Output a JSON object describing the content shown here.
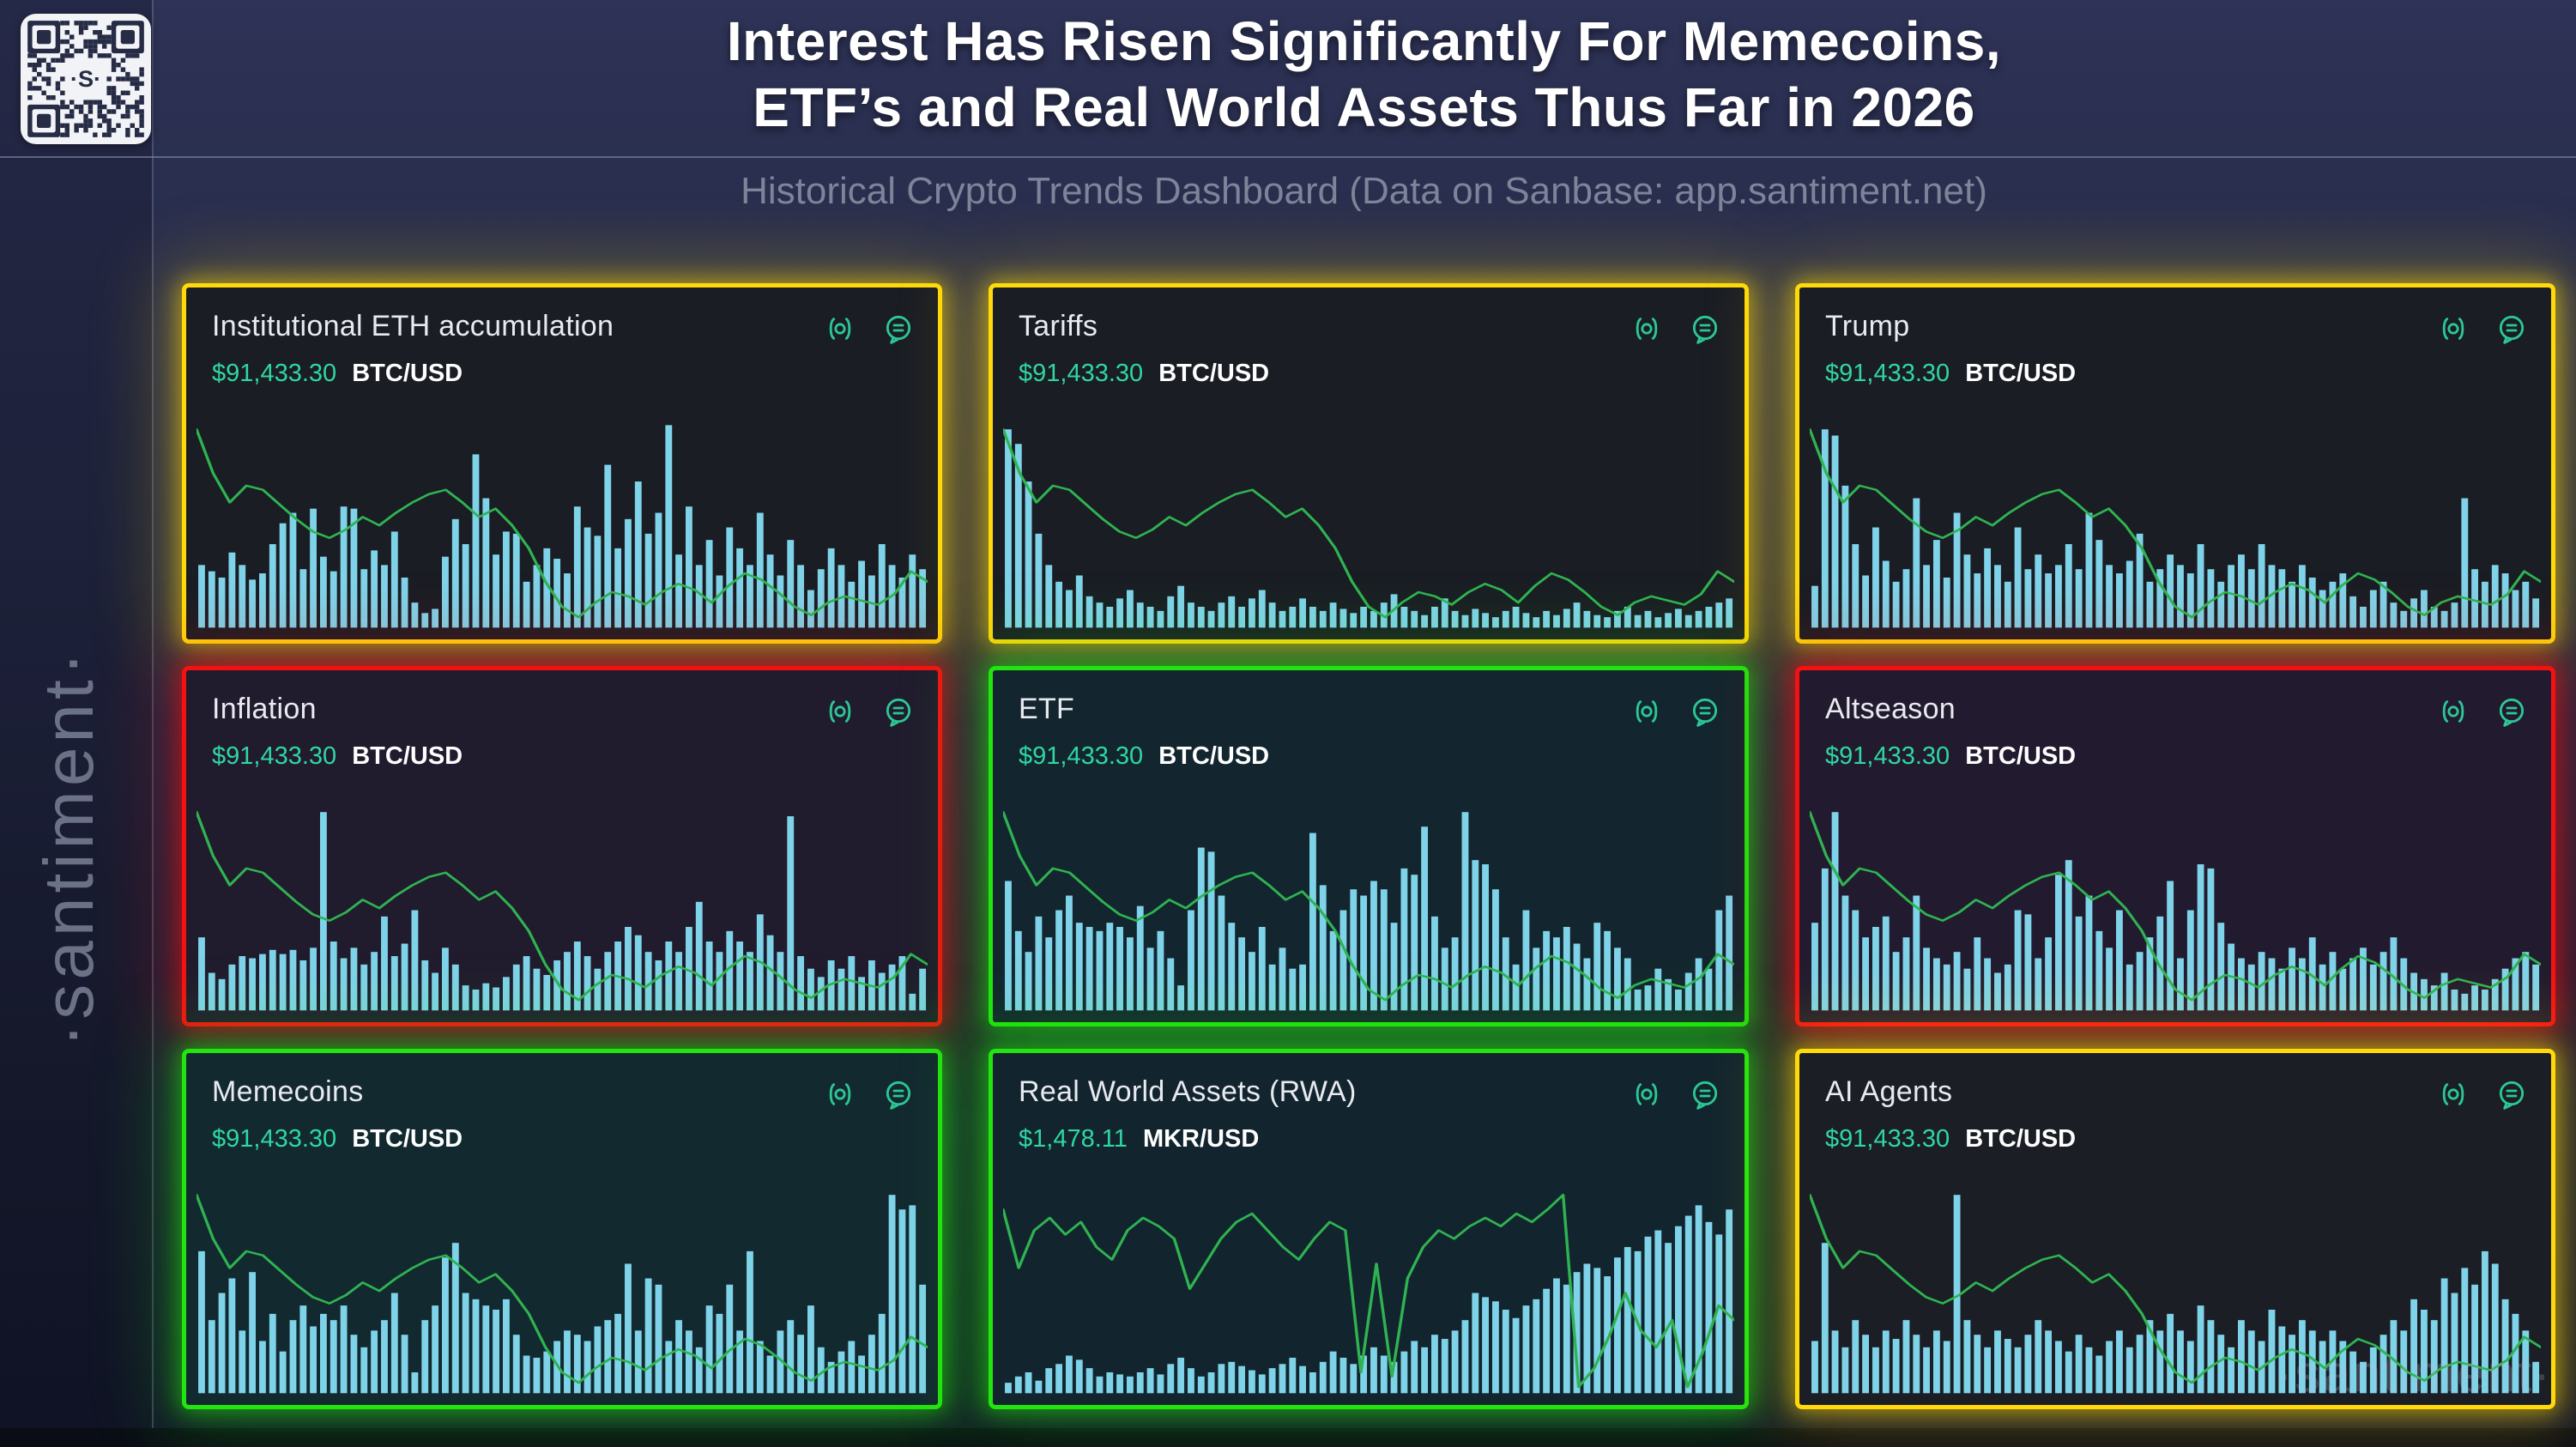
{
  "page": {
    "title_line1": "Interest Has Risen Significantly For Memecoins,",
    "title_line2": "ETF’s and Real World Assets Thus Far in 2026",
    "subtitle": "Historical Crypto Trends Dashboard (Data on Sanbase: app.santiment.net)",
    "brand_vertical": "·santiment·",
    "watermark": "·santiment·"
  },
  "qr": {
    "center_text": "·S·"
  },
  "icons": [
    {
      "name": "signal-icon"
    },
    {
      "name": "comments-icon"
    }
  ],
  "colors": {
    "bar": "#7fd3e9",
    "line": "#2fb351",
    "price_green": "#2fd7a2",
    "icon_green": "#2cc795",
    "borders": {
      "yellow": "#ffd90a",
      "red": "#f51111",
      "green": "#22e40e"
    }
  },
  "chart_meta": {
    "note": "No axes, ticks or numeric scales are shown in the image; bar and line values below are visual estimates normalized 0-100 of panel height.",
    "x_axis": "time (unlabeled)",
    "y_axis": "unlabeled",
    "grid": "off",
    "legend": "none"
  },
  "price_lines": {
    "btc_usd": [
      95,
      74,
      60,
      68,
      66,
      59,
      52,
      46,
      43,
      47,
      53,
      49,
      55,
      60,
      64,
      66,
      60,
      53,
      57,
      49,
      38,
      22,
      10,
      5,
      12,
      17,
      15,
      11,
      17,
      21,
      18,
      12,
      20,
      26,
      23,
      17,
      10,
      6,
      12,
      15,
      13,
      11,
      16,
      27,
      22
    ],
    "mkr_usd": [
      88,
      60,
      78,
      84,
      76,
      82,
      70,
      64,
      78,
      84,
      80,
      74,
      50,
      62,
      74,
      82,
      86,
      78,
      70,
      64,
      74,
      82,
      78,
      10,
      62,
      8,
      55,
      70,
      78,
      74,
      80,
      84,
      80,
      86,
      82,
      88,
      95,
      3,
      12,
      28,
      48,
      30,
      22,
      35,
      3,
      20,
      42,
      35
    ]
  },
  "chart_data": [
    {
      "type": "bar",
      "title": "Institutional ETH accumulation",
      "price": "$91,433.30",
      "pair": "BTC/USD",
      "border": "yellow",
      "bg": "#1a1d24",
      "line": "btc_usd",
      "bars": [
        30,
        27,
        24,
        36,
        30,
        23,
        26,
        40,
        50,
        55,
        28,
        57,
        34,
        27,
        58,
        57,
        28,
        37,
        30,
        46,
        24,
        12,
        7,
        9,
        34,
        52,
        40,
        83,
        62,
        35,
        46,
        45,
        22,
        30,
        38,
        33,
        26,
        58,
        48,
        44,
        78,
        38,
        52,
        70,
        45,
        55,
        97,
        35,
        58,
        30,
        42,
        25,
        48,
        38,
        30,
        55,
        35,
        25,
        42,
        30,
        18,
        28,
        38,
        30,
        22,
        32,
        25,
        40,
        30,
        24,
        35,
        28
      ]
    },
    {
      "type": "bar",
      "title": "Tariffs",
      "price": "$91,433.30",
      "pair": "BTC/USD",
      "border": "yellow",
      "bg": "#1a1d24",
      "line": "btc_usd",
      "bars": [
        95,
        88,
        70,
        45,
        30,
        22,
        18,
        25,
        15,
        12,
        10,
        14,
        18,
        12,
        10,
        8,
        15,
        20,
        12,
        10,
        8,
        12,
        15,
        10,
        14,
        18,
        12,
        8,
        10,
        14,
        10,
        8,
        12,
        9,
        7,
        10,
        8,
        12,
        16,
        10,
        8,
        6,
        10,
        14,
        8,
        6,
        9,
        7,
        5,
        8,
        10,
        7,
        5,
        8,
        6,
        9,
        12,
        8,
        6,
        5,
        8,
        10,
        6,
        8,
        5,
        7,
        9,
        6,
        8,
        10,
        12,
        14
      ]
    },
    {
      "type": "bar",
      "title": "Trump",
      "price": "$91,433.30",
      "pair": "BTC/USD",
      "border": "yellow",
      "bg": "#1a1d24",
      "line": "btc_usd",
      "bars": [
        20,
        95,
        92,
        68,
        40,
        25,
        48,
        32,
        22,
        28,
        62,
        30,
        42,
        24,
        55,
        35,
        26,
        38,
        30,
        22,
        48,
        28,
        35,
        26,
        30,
        40,
        28,
        55,
        42,
        30,
        26,
        32,
        45,
        22,
        28,
        35,
        30,
        26,
        40,
        28,
        22,
        30,
        35,
        28,
        40,
        30,
        28,
        22,
        30,
        24,
        18,
        22,
        26,
        15,
        10,
        18,
        22,
        12,
        8,
        14,
        18,
        10,
        8,
        12,
        62,
        28,
        22,
        30,
        26,
        18,
        22,
        14
      ]
    },
    {
      "type": "bar",
      "title": "Inflation",
      "price": "$91,433.30",
      "pair": "BTC/USD",
      "border": "red",
      "bg": "#211b2e",
      "line": "btc_usd",
      "bars": [
        35,
        18,
        15,
        22,
        26,
        25,
        27,
        29,
        27,
        29,
        24,
        30,
        95,
        33,
        25,
        30,
        22,
        28,
        45,
        26,
        32,
        48,
        24,
        18,
        30,
        22,
        12,
        10,
        13,
        11,
        16,
        22,
        26,
        20,
        17,
        24,
        28,
        33,
        26,
        20,
        28,
        33,
        40,
        36,
        28,
        24,
        33,
        28,
        40,
        52,
        33,
        28,
        38,
        33,
        28,
        46,
        36,
        28,
        93,
        26,
        20,
        16,
        24,
        20,
        26,
        16,
        24,
        18,
        22,
        26,
        8,
        20
      ]
    },
    {
      "type": "bar",
      "title": "ETF",
      "price": "$91,433.30",
      "pair": "BTC/USD",
      "border": "green",
      "bg": "#13262f",
      "line": "btc_usd",
      "bars": [
        62,
        38,
        28,
        45,
        35,
        48,
        55,
        42,
        40,
        38,
        42,
        40,
        35,
        50,
        30,
        38,
        25,
        12,
        48,
        78,
        76,
        55,
        42,
        35,
        28,
        40,
        22,
        30,
        20,
        22,
        85,
        60,
        38,
        48,
        58,
        55,
        62,
        58,
        42,
        68,
        65,
        88,
        45,
        30,
        35,
        95,
        72,
        70,
        58,
        35,
        22,
        48,
        30,
        38,
        35,
        40,
        32,
        25,
        42,
        38,
        30,
        25,
        10,
        12,
        20,
        15,
        10,
        18,
        25,
        20,
        48,
        55
      ]
    },
    {
      "type": "bar",
      "title": "Altseason",
      "price": "$91,433.30",
      "pair": "BTC/USD",
      "border": "red",
      "bg": "#221b2f",
      "line": "btc_usd",
      "bars": [
        42,
        68,
        95,
        55,
        48,
        35,
        40,
        45,
        28,
        35,
        55,
        30,
        25,
        22,
        28,
        20,
        35,
        25,
        18,
        22,
        48,
        46,
        25,
        35,
        65,
        72,
        45,
        55,
        38,
        30,
        48,
        22,
        28,
        35,
        45,
        62,
        25,
        48,
        70,
        68,
        42,
        32,
        25,
        22,
        28,
        25,
        20,
        30,
        25,
        35,
        22,
        28,
        20,
        25,
        30,
        22,
        28,
        35,
        25,
        18,
        15,
        12,
        18,
        10,
        8,
        12,
        10,
        15,
        20,
        25,
        28,
        22
      ]
    },
    {
      "type": "bar",
      "title": "Memecoins",
      "price": "$91,433.30",
      "pair": "BTC/USD",
      "border": "green",
      "bg": "#132930",
      "line": "btc_usd",
      "bars": [
        68,
        35,
        48,
        55,
        30,
        58,
        25,
        38,
        20,
        35,
        42,
        32,
        38,
        35,
        42,
        28,
        22,
        30,
        35,
        48,
        28,
        10,
        35,
        42,
        65,
        72,
        48,
        45,
        42,
        40,
        45,
        28,
        18,
        17,
        20,
        25,
        30,
        28,
        25,
        32,
        35,
        38,
        62,
        30,
        55,
        52,
        25,
        35,
        30,
        22,
        42,
        38,
        52,
        30,
        68,
        25,
        18,
        30,
        35,
        28,
        42,
        22,
        15,
        20,
        25,
        18,
        28,
        38,
        95,
        88,
        90,
        52
      ]
    },
    {
      "type": "bar",
      "title": "Real World Assets (RWA)",
      "price": "$1,478.11",
      "pair": "MKR/USD",
      "border": "green",
      "bg": "#12252e",
      "line": "mkr_usd",
      "bars": [
        5,
        8,
        10,
        6,
        12,
        14,
        18,
        16,
        12,
        8,
        10,
        9,
        8,
        10,
        12,
        9,
        14,
        17,
        12,
        8,
        10,
        14,
        15,
        13,
        11,
        9,
        12,
        14,
        17,
        13,
        10,
        15,
        20,
        17,
        14,
        18,
        22,
        18,
        15,
        20,
        25,
        22,
        28,
        26,
        30,
        35,
        48,
        46,
        44,
        40,
        36,
        42,
        45,
        50,
        55,
        52,
        58,
        62,
        60,
        56,
        65,
        70,
        68,
        75,
        78,
        72,
        80,
        85,
        90,
        82,
        76,
        88
      ]
    },
    {
      "type": "bar",
      "title": "AI Agents",
      "price": "$91,433.30",
      "pair": "BTC/USD",
      "border": "yellow",
      "bg": "#1b1e25",
      "line": "btc_usd",
      "bars": [
        25,
        72,
        30,
        22,
        35,
        28,
        22,
        30,
        26,
        35,
        28,
        22,
        30,
        25,
        95,
        35,
        28,
        22,
        30,
        26,
        22,
        28,
        35,
        30,
        25,
        20,
        28,
        22,
        18,
        25,
        30,
        22,
        28,
        35,
        30,
        38,
        30,
        25,
        42,
        35,
        28,
        22,
        35,
        30,
        25,
        40,
        32,
        28,
        35,
        30,
        25,
        30,
        25,
        20,
        15,
        22,
        28,
        35,
        30,
        45,
        40,
        35,
        55,
        48,
        60,
        52,
        68,
        62,
        45,
        38,
        30,
        15
      ]
    }
  ]
}
